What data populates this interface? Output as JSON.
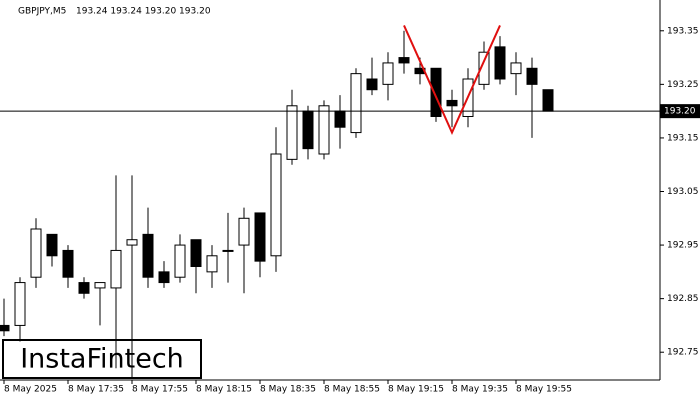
{
  "chart_data": {
    "type": "candlestick",
    "title": "GBPJPY,M5",
    "subtitle": "193.24 193.24 193.20 193.20",
    "watermark": "InstaFintech",
    "categories": [
      "8 May 2025",
      null,
      null,
      null,
      "8 May 17:35",
      null,
      null,
      null,
      "8 May 17:55",
      null,
      null,
      null,
      "8 May 18:15",
      null,
      null,
      null,
      "8 May 18:35",
      null,
      null,
      null,
      "8 May 18:55",
      null,
      null,
      null,
      "8 May 19:15",
      null,
      null,
      null,
      "8 May 19:35",
      null,
      null,
      null,
      "8 May 19:55",
      null,
      null
    ],
    "open": [
      192.8,
      192.8,
      192.89,
      192.97,
      192.94,
      192.88,
      192.87,
      192.87,
      192.95,
      192.97,
      192.9,
      192.89,
      192.96,
      192.9,
      192.94,
      192.95,
      193.01,
      192.93,
      193.11,
      193.2,
      193.12,
      193.2,
      193.16,
      193.26,
      193.25,
      193.3,
      193.28,
      193.28,
      193.22,
      193.19,
      193.25,
      193.32,
      193.27,
      193.28,
      193.24
    ],
    "high": [
      192.85,
      192.89,
      193.0,
      192.97,
      192.95,
      192.89,
      192.88,
      193.08,
      193.08,
      193.02,
      192.92,
      192.97,
      192.96,
      192.95,
      193.01,
      193.02,
      193.01,
      193.17,
      193.24,
      193.21,
      193.22,
      193.23,
      193.28,
      193.3,
      193.31,
      193.35,
      193.3,
      193.28,
      193.24,
      193.28,
      193.33,
      193.34,
      193.31,
      193.3,
      193.24
    ],
    "low": [
      192.78,
      192.77,
      192.87,
      192.91,
      192.87,
      192.85,
      192.8,
      192.72,
      192.7,
      192.87,
      192.87,
      192.88,
      192.86,
      192.87,
      192.88,
      192.86,
      192.89,
      192.9,
      193.1,
      193.11,
      193.11,
      193.13,
      193.15,
      193.23,
      193.22,
      193.27,
      193.25,
      193.18,
      193.17,
      193.17,
      193.24,
      193.25,
      193.23,
      193.15,
      193.2
    ],
    "close": [
      192.79,
      192.88,
      192.98,
      192.93,
      192.89,
      192.86,
      192.88,
      192.94,
      192.96,
      192.89,
      192.88,
      192.95,
      192.91,
      192.93,
      192.94,
      193.0,
      192.92,
      193.12,
      193.21,
      193.13,
      193.21,
      193.17,
      193.27,
      193.24,
      193.29,
      193.29,
      193.27,
      193.19,
      193.21,
      193.26,
      193.31,
      193.26,
      193.29,
      193.25,
      193.2
    ],
    "up_color": "#ffffff",
    "down_color": "#000000",
    "current_price": {
      "value": 193.2,
      "label": "193.20"
    },
    "pattern": {
      "color": "#e01010",
      "indices": [
        25,
        28,
        31
      ],
      "values": [
        193.36,
        193.16,
        193.36
      ]
    },
    "ylim": [
      192.7,
      193.4
    ],
    "yticks": [
      192.75,
      192.85,
      192.95,
      193.05,
      193.15,
      193.25,
      193.35
    ]
  }
}
